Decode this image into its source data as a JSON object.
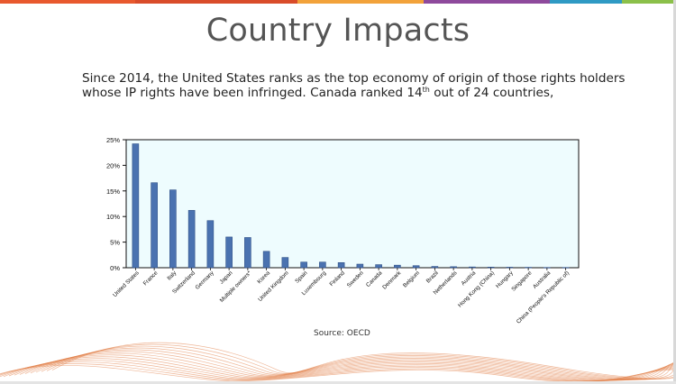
{
  "slide": {
    "title": "Country Impacts",
    "subtitle_line1": "Since 2014, the United States ranks as the top economy of origin of those rights holders",
    "subtitle_line2_pre": "whose IP rights have been infringed.  Canada ranked 14",
    "subtitle_sup": "th",
    "subtitle_line2_post": " out of 24 countries,",
    "source": "Source: OECD"
  },
  "colors": {
    "top_bar": [
      "#e8592e",
      "#d94c2a",
      "#f2a23a",
      "#8e4a9c",
      "#2f9ac4",
      "#8bc04a"
    ],
    "bar_fill": "#4a72b0",
    "plot_bg": "#eefcfe",
    "wave": "#e0783e"
  },
  "chart_data": {
    "type": "bar",
    "categories": [
      "United States",
      "France",
      "Italy",
      "Switzerland",
      "Germany",
      "Japan",
      "Multiple owners*",
      "Korea",
      "United Kingdom",
      "Spain",
      "Luxembourg",
      "Finland",
      "Sweden",
      "Canada",
      "Denmark",
      "Belgium",
      "Brazil",
      "Netherlands",
      "Austria",
      "Hong Kong (China)",
      "Hungary",
      "Singapore",
      "Australia",
      "China (People's Republic of)"
    ],
    "values": [
      24.2,
      16.6,
      15.2,
      11.2,
      9.2,
      6.0,
      5.9,
      3.2,
      2.0,
      1.1,
      1.1,
      1.0,
      0.7,
      0.6,
      0.5,
      0.4,
      0.25,
      0.2,
      0.15,
      0.12,
      0.1,
      0.08,
      0.05,
      0.05
    ],
    "yticks": [
      "0%",
      "5%",
      "10%",
      "15%",
      "20%",
      "25%"
    ],
    "ylim": [
      0,
      25
    ],
    "grid": false,
    "legend": "none"
  }
}
